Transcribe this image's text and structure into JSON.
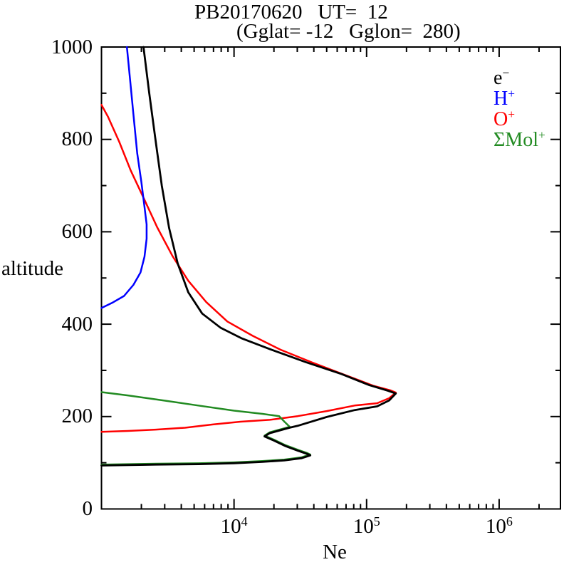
{
  "title": {
    "line1": "PB20170620   UT=  12",
    "line2": "(Gglat= -12   Gglon=  280)"
  },
  "axes": {
    "x": {
      "label": "Ne",
      "scale": "log",
      "min": 1000,
      "max": 2900000,
      "major_ticks": [
        {
          "value": 10000,
          "base": "10",
          "exp": "4"
        },
        {
          "value": 100000,
          "base": "10",
          "exp": "5"
        },
        {
          "value": 1000000,
          "base": "10",
          "exp": "6"
        }
      ]
    },
    "y": {
      "label": "altitude",
      "min": 0,
      "max": 1000,
      "major_ticks": [
        {
          "value": 0,
          "label": "0"
        },
        {
          "value": 200,
          "label": "200"
        },
        {
          "value": 400,
          "label": "400"
        },
        {
          "value": 600,
          "label": "600"
        },
        {
          "value": 800,
          "label": "800"
        },
        {
          "value": 1000,
          "label": "1000"
        }
      ],
      "minor_ticks": [
        100,
        300,
        500,
        700,
        900
      ]
    }
  },
  "legend": {
    "items": [
      {
        "base": "e",
        "sup": "−",
        "color": "#000000"
      },
      {
        "base": "H",
        "sup": "+",
        "color": "#0000ff"
      },
      {
        "base": "O",
        "sup": "+",
        "color": "#ff0000"
      },
      {
        "base": "ΣMol",
        "sup": "+",
        "color": "#228B22"
      }
    ]
  },
  "chart_data": {
    "type": "line",
    "title": "PB20170620  UT= 12 (Gglat= -12  Gglon= 280)",
    "xlabel": "Ne",
    "ylabel": "altitude",
    "x_scale": "log",
    "xlim": [
      1000,
      2900000
    ],
    "ylim": [
      0,
      1000
    ],
    "grid": false,
    "legend_position": "upper right inside",
    "series": [
      {
        "name": "O+",
        "color": "#ff0000",
        "points": [
          [
            1000,
            873
          ],
          [
            1120,
            847
          ],
          [
            1360,
            793
          ],
          [
            1660,
            731
          ],
          [
            2090,
            670
          ],
          [
            2630,
            608
          ],
          [
            3430,
            546
          ],
          [
            4520,
            492
          ],
          [
            6170,
            446
          ],
          [
            8900,
            404
          ],
          [
            13800,
            373
          ],
          [
            22400,
            343
          ],
          [
            39000,
            315
          ],
          [
            67600,
            289
          ],
          [
            112000,
            265
          ],
          [
            151000,
            255
          ],
          [
            166000,
            250
          ],
          [
            148000,
            238
          ],
          [
            120000,
            227
          ],
          [
            81300,
            222
          ],
          [
            50000,
            210
          ],
          [
            30200,
            199
          ],
          [
            18600,
            191
          ],
          [
            11200,
            187
          ],
          [
            6920,
            181
          ],
          [
            4270,
            174
          ],
          [
            2570,
            170
          ],
          [
            1580,
            167
          ],
          [
            1000,
            165
          ]
        ]
      },
      {
        "name": "ΣMol+",
        "color": "#228B22",
        "points": [
          [
            1000,
            251
          ],
          [
            1580,
            244
          ],
          [
            2950,
            233
          ],
          [
            5370,
            222
          ],
          [
            10000,
            211
          ],
          [
            16400,
            204
          ],
          [
            21900,
            199
          ],
          [
            24000,
            187
          ],
          [
            26300,
            176
          ],
          [
            18600,
            164
          ],
          [
            17000,
            157
          ],
          [
            20000,
            148
          ],
          [
            24500,
            136
          ],
          [
            30400,
            126
          ],
          [
            35700,
            119
          ],
          [
            37600,
            116
          ],
          [
            32400,
            110
          ],
          [
            23900,
            105
          ],
          [
            16400,
            102
          ],
          [
            10000,
            99
          ],
          [
            5400,
            97
          ],
          [
            2570,
            96
          ],
          [
            1000,
            94
          ]
        ]
      },
      {
        "name": "H+",
        "color": "#0000ff",
        "points": [
          [
            1555,
            1000
          ],
          [
            1640,
            932
          ],
          [
            1740,
            855
          ],
          [
            1860,
            770
          ],
          [
            2000,
            708
          ],
          [
            2110,
            654
          ],
          [
            2190,
            616
          ],
          [
            2190,
            585
          ],
          [
            2110,
            546
          ],
          [
            1970,
            512
          ],
          [
            1740,
            485
          ],
          [
            1480,
            461
          ],
          [
            1200,
            446
          ],
          [
            1000,
            435
          ]
        ]
      },
      {
        "name": "e-",
        "color": "#000000",
        "points": [
          [
            2075,
            1000
          ],
          [
            2290,
            901
          ],
          [
            2570,
            794
          ],
          [
            2850,
            700
          ],
          [
            3240,
            608
          ],
          [
            3760,
            531
          ],
          [
            4520,
            469
          ],
          [
            5750,
            423
          ],
          [
            7940,
            392
          ],
          [
            11500,
            369
          ],
          [
            18600,
            346
          ],
          [
            34700,
            318
          ],
          [
            64600,
            292
          ],
          [
            105000,
            268
          ],
          [
            145000,
            256
          ],
          [
            166000,
            250
          ],
          [
            148000,
            235
          ],
          [
            120000,
            222
          ],
          [
            81300,
            214
          ],
          [
            50000,
            199
          ],
          [
            30200,
            180
          ],
          [
            26300,
            176
          ],
          [
            18600,
            164
          ],
          [
            17000,
            157
          ],
          [
            20000,
            148
          ],
          [
            24500,
            136
          ],
          [
            30400,
            126
          ],
          [
            35700,
            119
          ],
          [
            37600,
            116
          ],
          [
            32400,
            110
          ],
          [
            23900,
            105
          ],
          [
            16400,
            102
          ],
          [
            10000,
            99
          ],
          [
            5400,
            97
          ],
          [
            2570,
            96
          ],
          [
            1000,
            94
          ]
        ]
      }
    ]
  }
}
